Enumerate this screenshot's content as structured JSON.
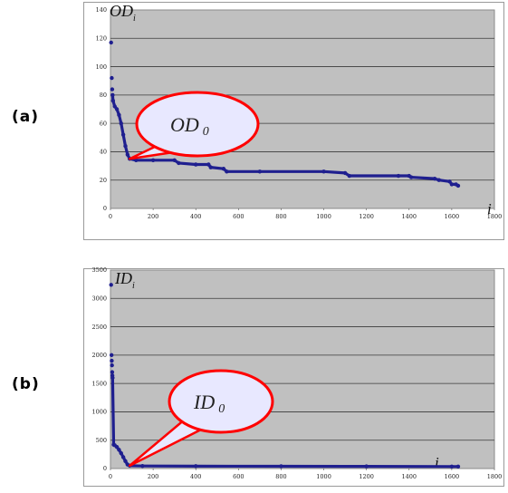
{
  "panels": [
    {
      "label": "(a)"
    },
    {
      "label": "(b)"
    }
  ],
  "chart_data": [
    {
      "type": "scatter",
      "panel": "(a)",
      "ylabel_main": "OD",
      "ylabel_sub": "i",
      "xlabel": "i",
      "xlim": [
        0,
        1800
      ],
      "ylim": [
        0,
        140
      ],
      "x_ticks": [
        "0",
        "200",
        "400",
        "600",
        "800",
        "1000",
        "1200",
        "1400",
        "1600",
        "1800"
      ],
      "y_ticks": [
        "0",
        "20",
        "40",
        "60",
        "80",
        "100",
        "120",
        "140"
      ],
      "grid": true,
      "annotation": {
        "main": "OD",
        "sub": "0",
        "target_x": 90,
        "target_y": 35
      },
      "series": [
        {
          "color": "#1f1f8f",
          "points": [
            [
              3,
              117
            ],
            [
              6,
              92
            ],
            [
              8,
              84
            ],
            [
              10,
              80
            ],
            [
              12,
              76
            ],
            [
              20,
              72
            ],
            [
              30,
              70
            ],
            [
              40,
              66
            ],
            [
              50,
              60
            ],
            [
              60,
              52
            ],
            [
              70,
              44
            ],
            [
              80,
              38
            ],
            [
              90,
              35
            ],
            [
              120,
              34
            ],
            [
              200,
              34
            ],
            [
              300,
              34
            ],
            [
              320,
              32
            ],
            [
              400,
              31
            ],
            [
              460,
              31
            ],
            [
              470,
              29
            ],
            [
              530,
              28
            ],
            [
              545,
              26
            ],
            [
              700,
              26
            ],
            [
              1000,
              26
            ],
            [
              1100,
              25
            ],
            [
              1120,
              23
            ],
            [
              1350,
              23
            ],
            [
              1400,
              23
            ],
            [
              1410,
              22
            ],
            [
              1520,
              21
            ],
            [
              1540,
              20
            ],
            [
              1590,
              19
            ],
            [
              1600,
              17
            ],
            [
              1620,
              17
            ],
            [
              1630,
              16
            ]
          ]
        }
      ]
    },
    {
      "type": "scatter",
      "panel": "(b)",
      "ylabel_main": "ID",
      "ylabel_sub": "i",
      "xlabel": "i",
      "xlim": [
        0,
        1800
      ],
      "ylim": [
        0,
        3500
      ],
      "x_ticks": [
        "0",
        "200",
        "400",
        "600",
        "800",
        "1000",
        "1200",
        "1400",
        "1600",
        "1800"
      ],
      "y_ticks": [
        "0",
        "500",
        "1000",
        "1500",
        "2000",
        "2500",
        "3000",
        "3500"
      ],
      "grid": true,
      "annotation": {
        "main": "ID",
        "sub": "0",
        "target_x": 90,
        "target_y": 50
      },
      "series": [
        {
          "color": "#1f1f8f",
          "points": [
            [
              3,
              3240
            ],
            [
              5,
              2000
            ],
            [
              6,
              1900
            ],
            [
              7,
              1820
            ],
            [
              8,
              1700
            ],
            [
              9,
              1640
            ],
            [
              10,
              1600
            ],
            [
              15,
              420
            ],
            [
              20,
              410
            ],
            [
              30,
              380
            ],
            [
              40,
              330
            ],
            [
              50,
              270
            ],
            [
              60,
              200
            ],
            [
              70,
              130
            ],
            [
              80,
              70
            ],
            [
              90,
              50
            ],
            [
              150,
              45
            ],
            [
              400,
              42
            ],
            [
              800,
              40
            ],
            [
              1200,
              38
            ],
            [
              1600,
              35
            ],
            [
              1630,
              35
            ]
          ]
        }
      ]
    }
  ]
}
